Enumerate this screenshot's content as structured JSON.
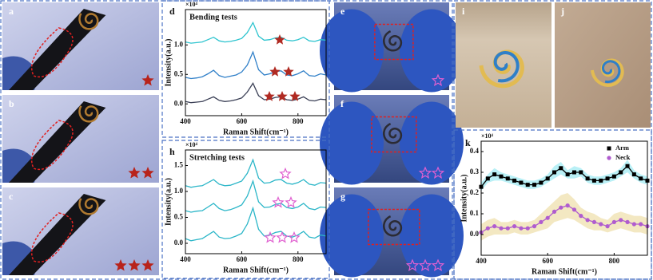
{
  "panels": [
    "a",
    "b",
    "c",
    "e",
    "f",
    "g",
    "i",
    "j"
  ],
  "chart_data": [
    {
      "type": "line",
      "panel": "d",
      "title": "Bending tests",
      "scale_label": "×10⁴",
      "xlabel": "Raman Shift(cm⁻¹)",
      "ylabel": "Intensity(a.u.)",
      "x": [
        400,
        420,
        440,
        460,
        480,
        500,
        520,
        540,
        560,
        580,
        600,
        620,
        640,
        660,
        680,
        700,
        720,
        740,
        760,
        780,
        800,
        820,
        840,
        860,
        880,
        900
      ],
      "xlim": [
        400,
        900
      ],
      "xticks": [
        400,
        600,
        800
      ],
      "ylim": [
        -0.2,
        1.6
      ],
      "yticks": [
        {
          "value": 0,
          "label": "0.0"
        },
        0.5,
        {
          "value": 1,
          "label": "1.0"
        }
      ],
      "series": [
        {
          "color": "#2ec4cf",
          "values": [
            1.05,
            1.03,
            1.04,
            1.05,
            1.09,
            1.13,
            1.07,
            1.05,
            1.06,
            1.08,
            1.11,
            1.21,
            1.38,
            1.15,
            1.08,
            1.09,
            1.12,
            1.13,
            1.08,
            1.07,
            1.09,
            1.13,
            1.07,
            1.06,
            1.09,
            1.08
          ]
        },
        {
          "color": "#2f7fc8",
          "values": [
            0.45,
            0.43,
            0.44,
            0.46,
            0.51,
            0.57,
            0.48,
            0.45,
            0.47,
            0.49,
            0.54,
            0.66,
            0.88,
            0.58,
            0.49,
            0.51,
            0.55,
            0.56,
            0.49,
            0.48,
            0.51,
            0.56,
            0.48,
            0.47,
            0.51,
            0.49
          ]
        },
        {
          "color": "#3a3f55",
          "values": [
            0.04,
            0.02,
            0.03,
            0.04,
            0.08,
            0.12,
            0.06,
            0.04,
            0.05,
            0.07,
            0.1,
            0.2,
            0.35,
            0.14,
            0.07,
            0.08,
            0.11,
            0.12,
            0.07,
            0.06,
            0.08,
            0.12,
            0.06,
            0.05,
            0.08,
            0.07
          ]
        }
      ]
    },
    {
      "type": "line",
      "panel": "h",
      "title": "Stretching tests",
      "scale_label": "×10⁴",
      "xlabel": "Raman Shift(cm⁻¹)",
      "ylabel": "Intensity(a.u.)",
      "x": [
        400,
        420,
        440,
        460,
        480,
        500,
        520,
        540,
        560,
        580,
        600,
        620,
        640,
        660,
        680,
        700,
        720,
        740,
        760,
        780,
        800,
        820,
        840,
        860,
        880,
        900
      ],
      "xlim": [
        400,
        900
      ],
      "xticks": [
        400,
        600,
        800
      ],
      "ylim": [
        -0.2,
        1.8
      ],
      "yticks": [
        {
          "value": 0,
          "label": "0.0"
        },
        0.5,
        {
          "value": 1,
          "label": "1.0"
        },
        1.5
      ],
      "series": [
        {
          "color": "#2bb6c8",
          "values": [
            1.11,
            1.08,
            1.1,
            1.11,
            1.17,
            1.23,
            1.14,
            1.11,
            1.12,
            1.16,
            1.2,
            1.35,
            1.61,
            1.26,
            1.16,
            1.17,
            1.22,
            1.23,
            1.16,
            1.14,
            1.17,
            1.23,
            1.14,
            1.12,
            1.17,
            1.16
          ]
        },
        {
          "color": "#2bb6c8",
          "values": [
            0.63,
            0.6,
            0.62,
            0.63,
            0.7,
            0.77,
            0.67,
            0.63,
            0.65,
            0.69,
            0.74,
            0.91,
            1.2,
            0.8,
            0.69,
            0.7,
            0.75,
            0.77,
            0.69,
            0.67,
            0.7,
            0.77,
            0.67,
            0.65,
            0.7,
            0.69
          ]
        },
        {
          "color": "#2bb6c8",
          "values": [
            0.09,
            0.05,
            0.07,
            0.09,
            0.16,
            0.23,
            0.12,
            0.09,
            0.1,
            0.14,
            0.19,
            0.37,
            0.68,
            0.27,
            0.14,
            0.16,
            0.21,
            0.23,
            0.14,
            0.12,
            0.16,
            0.23,
            0.12,
            0.1,
            0.16,
            0.14
          ]
        }
      ]
    },
    {
      "type": "line",
      "panel": "k",
      "scale_label": "×10⁴",
      "xlabel": "Raman Shift(cm⁻¹)",
      "ylabel": "Intensity(a.u.)",
      "legend": "upper right",
      "x": [
        400,
        420,
        440,
        460,
        480,
        500,
        520,
        540,
        560,
        580,
        600,
        620,
        640,
        660,
        680,
        700,
        720,
        740,
        760,
        780,
        800,
        820,
        840,
        860,
        880,
        900
      ],
      "xlim": [
        400,
        900
      ],
      "xticks": [
        400,
        600,
        800
      ],
      "ylim": [
        -0.1,
        0.45
      ],
      "yticks": [
        {
          "value": 0,
          "label": "0.0"
        },
        0.1,
        0.2,
        0.3,
        0.4
      ],
      "series": [
        {
          "name": "Arm",
          "color": "#000000",
          "marker": "square",
          "band_color": "#7fe3ef",
          "values": [
            0.23,
            0.27,
            0.29,
            0.28,
            0.27,
            0.26,
            0.25,
            0.24,
            0.24,
            0.25,
            0.27,
            0.3,
            0.32,
            0.29,
            0.3,
            0.3,
            0.27,
            0.26,
            0.26,
            0.27,
            0.28,
            0.3,
            0.33,
            0.29,
            0.27,
            0.26
          ],
          "errors": [
            0.02,
            0.02,
            0.03,
            0.02,
            0.02,
            0.02,
            0.02,
            0.02,
            0.02,
            0.02,
            0.02,
            0.03,
            0.03,
            0.02,
            0.03,
            0.02,
            0.02,
            0.02,
            0.02,
            0.02,
            0.02,
            0.02,
            0.03,
            0.02,
            0.02,
            0.02
          ]
        },
        {
          "name": "Neck",
          "color": "#b05ccf",
          "marker": "circle",
          "band_color": "#ead58f",
          "values": [
            0.01,
            0.03,
            0.04,
            0.03,
            0.03,
            0.04,
            0.03,
            0.03,
            0.04,
            0.06,
            0.08,
            0.11,
            0.13,
            0.14,
            0.12,
            0.09,
            0.07,
            0.06,
            0.05,
            0.04,
            0.06,
            0.07,
            0.06,
            0.05,
            0.05,
            0.04
          ],
          "errors": [
            0.04,
            0.04,
            0.04,
            0.03,
            0.03,
            0.03,
            0.03,
            0.03,
            0.03,
            0.04,
            0.05,
            0.05,
            0.06,
            0.06,
            0.05,
            0.04,
            0.04,
            0.04,
            0.03,
            0.03,
            0.04,
            0.04,
            0.04,
            0.04,
            0.04,
            0.04
          ]
        }
      ]
    }
  ]
}
